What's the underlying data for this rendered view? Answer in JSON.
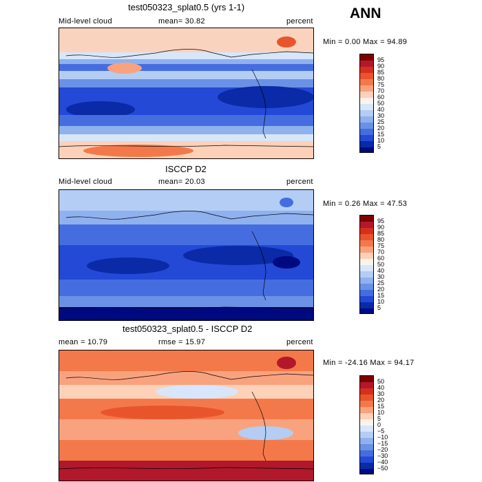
{
  "season": "ANN",
  "chart_data": [
    {
      "type": "heatmap",
      "title": "test050323_splat0.5 (yrs 1-1)",
      "variable_label": "Mid-level cloud",
      "stat_text": "mean=  30.82",
      "units": "percent",
      "range_text": "Min =   0.00 Max =  94.89",
      "min": 0.0,
      "max": 94.89,
      "mean": 30.82,
      "colorbar_levels": [
        "95",
        "90",
        "85",
        "80",
        "75",
        "70",
        "60",
        "50",
        "40",
        "30",
        "25",
        "20",
        "15",
        "10",
        "5"
      ],
      "colorbar_colors": [
        "#7f0000",
        "#b2182b",
        "#d6301c",
        "#e8552c",
        "#f4794a",
        "#f8a37e",
        "#fcd1b8",
        "#fbf3ee",
        "#d7e6fb",
        "#b3cdf5",
        "#8fb1ee",
        "#6b91e6",
        "#466de0",
        "#2349d6",
        "#0a2aa8",
        "#000a80"
      ]
    },
    {
      "type": "heatmap",
      "title": "ISCCP D2",
      "variable_label": "Mid-level cloud",
      "stat_text": "mean=  20.03",
      "units": "percent",
      "range_text": "Min =   0.26 Max =  47.53",
      "min": 0.26,
      "max": 47.53,
      "mean": 20.03,
      "colorbar_levels": [
        "95",
        "90",
        "85",
        "80",
        "75",
        "70",
        "60",
        "50",
        "40",
        "30",
        "25",
        "20",
        "15",
        "10",
        "5"
      ],
      "colorbar_colors": [
        "#7f0000",
        "#b2182b",
        "#d6301c",
        "#e8552c",
        "#f4794a",
        "#f8a37e",
        "#fcd1b8",
        "#fbf3ee",
        "#d7e6fb",
        "#b3cdf5",
        "#8fb1ee",
        "#6b91e6",
        "#466de0",
        "#2349d6",
        "#0a2aa8",
        "#000a80"
      ]
    },
    {
      "type": "heatmap",
      "title": "test050323_splat0.5 - ISCCP D2",
      "mean_text": "mean =   10.79",
      "rmse_text": "rmse =   15.97",
      "units": "percent",
      "range_text": "Min = -24.16 Max =  94.17",
      "min": -24.16,
      "max": 94.17,
      "mean": 10.79,
      "rmse": 15.97,
      "colorbar_levels": [
        "50",
        "40",
        "30",
        "20",
        "15",
        "10",
        "5",
        "0",
        "−5",
        "−10",
        "−15",
        "−20",
        "−30",
        "−40",
        "−50"
      ],
      "colorbar_colors": [
        "#7f0000",
        "#b2182b",
        "#d6301c",
        "#e8552c",
        "#f4794a",
        "#f8a37e",
        "#fcd1b8",
        "#fbf3ee",
        "#d7e6fb",
        "#b3cdf5",
        "#8fb1ee",
        "#6b91e6",
        "#466de0",
        "#2349d6",
        "#0a2aa8",
        "#000a80"
      ]
    }
  ]
}
